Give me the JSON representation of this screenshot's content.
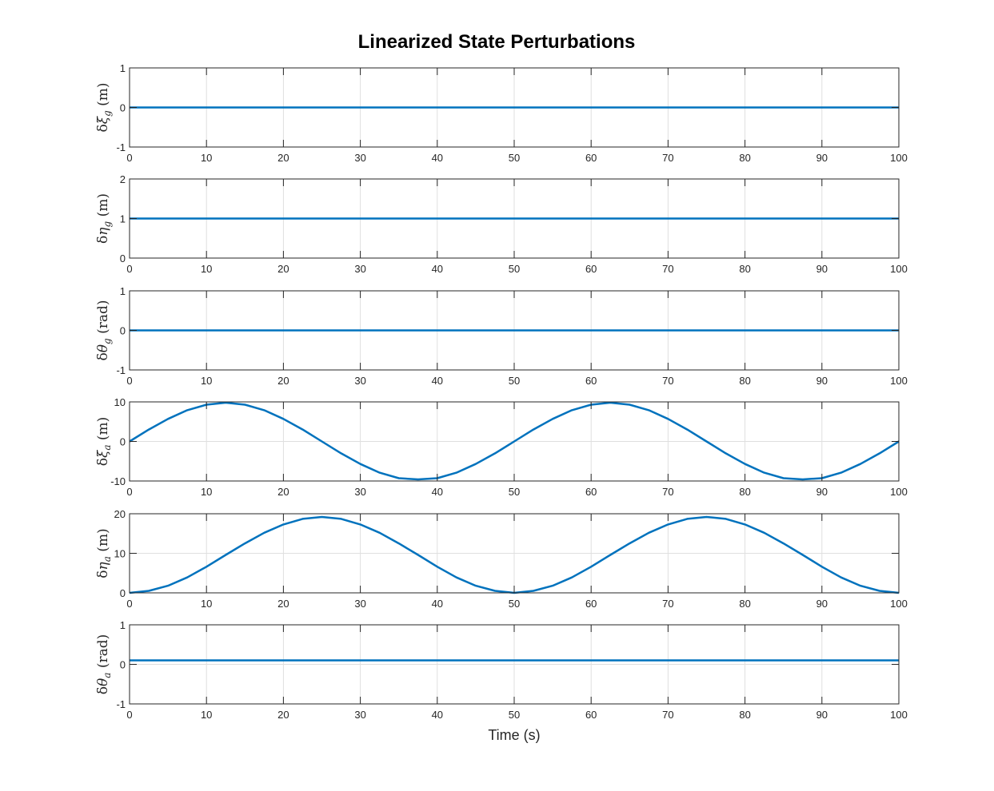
{
  "chart_data": {
    "type": "line",
    "title": "Linearized State Perturbations",
    "xlabel": "Time (s)",
    "xlim": [
      0,
      100
    ],
    "xticks": [
      0,
      10,
      20,
      30,
      40,
      50,
      60,
      70,
      80,
      90,
      100
    ],
    "grid": true,
    "line_color": "#0072BD",
    "subplots": [
      {
        "ylabel": "δξ_g (m)",
        "ylim": [
          -1,
          1
        ],
        "yticks": [
          -1,
          0,
          1
        ],
        "series": {
          "x": [
            0,
            100
          ],
          "y": [
            0,
            0
          ]
        }
      },
      {
        "ylabel": "δη_g (m)",
        "ylim": [
          0,
          2
        ],
        "yticks": [
          0,
          1,
          2
        ],
        "series": {
          "x": [
            0,
            100
          ],
          "y": [
            1,
            1
          ]
        }
      },
      {
        "ylabel": "δθ_g (rad)",
        "ylim": [
          -1,
          1
        ],
        "yticks": [
          -1,
          0,
          1
        ],
        "series": {
          "x": [
            0,
            100
          ],
          "y": [
            0,
            0
          ]
        }
      },
      {
        "ylabel": "δξ_a (m)",
        "ylim": [
          -10,
          10
        ],
        "yticks": [
          -10,
          0,
          10
        ],
        "series": {
          "x": [
            0,
            2.5,
            5,
            7.5,
            10,
            12.5,
            15,
            17.5,
            20,
            22.5,
            25,
            27.5,
            30,
            32.5,
            35,
            37.5,
            40,
            42.5,
            45,
            47.5,
            50,
            52.5,
            55,
            57.5,
            60,
            62.5,
            65,
            67.5,
            70,
            72.5,
            75,
            77.5,
            80,
            82.5,
            85,
            87.5,
            90,
            92.5,
            95,
            97.5,
            100
          ],
          "y": [
            0,
            3.0,
            5.7,
            7.9,
            9.3,
            9.8,
            9.3,
            7.9,
            5.7,
            3.0,
            0,
            -3.0,
            -5.7,
            -7.9,
            -9.3,
            -9.6,
            -9.3,
            -7.9,
            -5.7,
            -3.0,
            0,
            3.0,
            5.7,
            7.9,
            9.3,
            9.8,
            9.3,
            7.9,
            5.7,
            3.0,
            0,
            -3.0,
            -5.7,
            -7.9,
            -9.3,
            -9.6,
            -9.3,
            -7.9,
            -5.7,
            -3.0,
            0
          ]
        }
      },
      {
        "ylabel": "δη_a (m)",
        "ylim": [
          0,
          20
        ],
        "yticks": [
          0,
          10,
          20
        ],
        "series": {
          "x": [
            0,
            2.5,
            5,
            7.5,
            10,
            12.5,
            15,
            17.5,
            20,
            22.5,
            25,
            27.5,
            30,
            32.5,
            35,
            37.5,
            40,
            42.5,
            45,
            47.5,
            50,
            52.5,
            55,
            57.5,
            60,
            62.5,
            65,
            67.5,
            70,
            72.5,
            75,
            77.5,
            80,
            82.5,
            85,
            87.5,
            90,
            92.5,
            95,
            97.5,
            100
          ],
          "y": [
            0,
            0.5,
            1.8,
            3.9,
            6.6,
            9.6,
            12.5,
            15.2,
            17.3,
            18.7,
            19.2,
            18.7,
            17.3,
            15.2,
            12.5,
            9.6,
            6.6,
            3.9,
            1.8,
            0.5,
            0,
            0.5,
            1.8,
            3.9,
            6.6,
            9.6,
            12.5,
            15.2,
            17.3,
            18.7,
            19.2,
            18.7,
            17.3,
            15.2,
            12.5,
            9.6,
            6.6,
            3.9,
            1.8,
            0.5,
            0
          ]
        }
      },
      {
        "ylabel": "δθ_a (rad)",
        "ylim": [
          -1,
          1
        ],
        "yticks": [
          -1,
          0,
          1
        ],
        "series": {
          "x": [
            0,
            100
          ],
          "y": [
            0.1,
            0.1
          ]
        }
      }
    ]
  }
}
